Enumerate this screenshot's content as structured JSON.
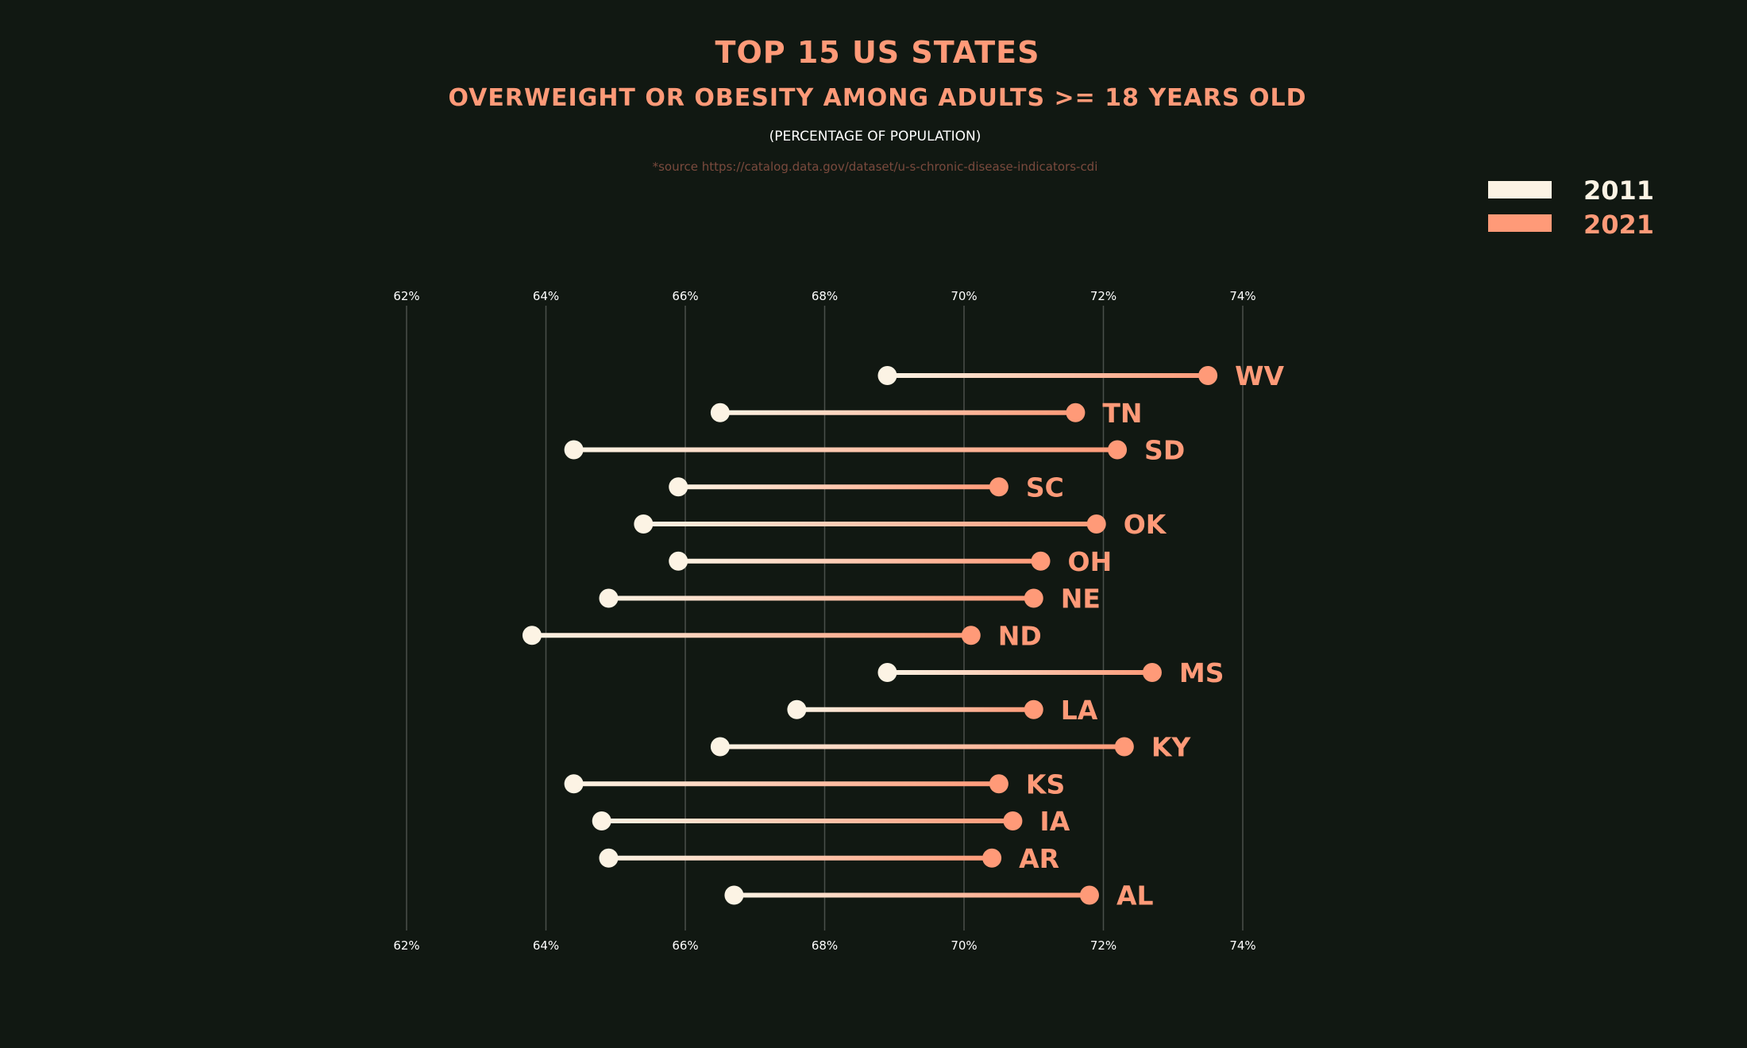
{
  "chart_data": {
    "type": "dumbbell",
    "title": "TOP 15 US STATES",
    "subtitle": "OVERWEIGHT OR OBESITY AMONG ADULTS >= 18 YEARS OLD",
    "subtitle2": "(PERCENTAGE OF POPULATION)",
    "source": "*source https://catalog.data.gov/dataset/u-s-chronic-disease-indicators-cdi",
    "xlim": [
      62,
      74
    ],
    "xticks": [
      62,
      64,
      66,
      68,
      70,
      72,
      74
    ],
    "tick_labels": [
      "62%",
      "64%",
      "66%",
      "68%",
      "70%",
      "72%",
      "74%"
    ],
    "grid": true,
    "legend_position": "top-right",
    "series_names": [
      "2011",
      "2021"
    ],
    "categories": [
      "WV",
      "TN",
      "SD",
      "SC",
      "OK",
      "OH",
      "NE",
      "ND",
      "MS",
      "LA",
      "KY",
      "KS",
      "IA",
      "AR",
      "AL"
    ],
    "series": [
      {
        "name": "2011",
        "values": [
          68.9,
          66.5,
          64.4,
          65.9,
          65.4,
          65.9,
          64.9,
          63.8,
          68.9,
          67.6,
          66.5,
          64.4,
          64.8,
          64.9,
          66.7
        ]
      },
      {
        "name": "2021",
        "values": [
          73.5,
          71.6,
          72.2,
          70.5,
          71.9,
          71.1,
          71.0,
          70.1,
          72.7,
          71.0,
          72.3,
          70.5,
          70.7,
          70.4,
          71.8
        ]
      }
    ],
    "colors": {
      "background": "#111812",
      "start": "#fcf3e4",
      "end": "#ff9a78",
      "title": "#ff9a78",
      "source": "#7a4a3d",
      "grid": "#4a4f4a",
      "tick": "#ffffff"
    }
  }
}
